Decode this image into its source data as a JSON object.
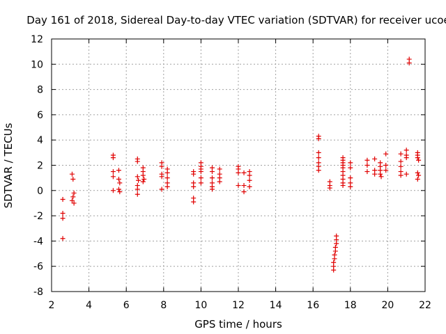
{
  "chart_data": {
    "type": "scatter",
    "title": "Day 161 of 2018, Sidereal Day-to-day VTEC variation (SDTVAR) for receiver ucoe",
    "xlabel": "GPS time / hours",
    "ylabel": "SDTVAR / TECUs",
    "xlim": [
      2,
      22
    ],
    "ylim": [
      -8,
      12
    ],
    "xticks": [
      2,
      4,
      6,
      8,
      10,
      12,
      14,
      16,
      18,
      20,
      22
    ],
    "yticks": [
      -8,
      -6,
      -4,
      -2,
      0,
      2,
      4,
      6,
      8,
      10,
      12
    ],
    "grid": true,
    "marker": "plus",
    "color": "#e00000",
    "series": [
      {
        "name": "SDTVAR",
        "points": [
          [
            2.6,
            -0.7
          ],
          [
            2.6,
            -1.8
          ],
          [
            2.6,
            -2.2
          ],
          [
            2.6,
            -3.8
          ],
          [
            3.1,
            1.3
          ],
          [
            3.15,
            0.9
          ],
          [
            3.2,
            -0.2
          ],
          [
            3.15,
            -0.5
          ],
          [
            3.1,
            -0.8
          ],
          [
            3.2,
            -1.0
          ],
          [
            5.3,
            2.8
          ],
          [
            5.3,
            2.6
          ],
          [
            5.3,
            1.5
          ],
          [
            5.3,
            1.1
          ],
          [
            5.3,
            0.0
          ],
          [
            5.6,
            1.6
          ],
          [
            5.6,
            0.9
          ],
          [
            5.65,
            0.6
          ],
          [
            5.6,
            0.1
          ],
          [
            5.65,
            -0.1
          ],
          [
            6.6,
            2.5
          ],
          [
            6.6,
            2.3
          ],
          [
            6.6,
            1.1
          ],
          [
            6.65,
            0.8
          ],
          [
            6.6,
            0.4
          ],
          [
            6.6,
            0.1
          ],
          [
            6.6,
            -0.3
          ],
          [
            6.9,
            1.8
          ],
          [
            6.9,
            1.5
          ],
          [
            6.9,
            1.2
          ],
          [
            6.95,
            0.9
          ],
          [
            6.9,
            0.7
          ],
          [
            7.9,
            2.2
          ],
          [
            7.9,
            1.9
          ],
          [
            7.9,
            1.3
          ],
          [
            7.9,
            1.1
          ],
          [
            7.9,
            0.1
          ],
          [
            8.2,
            1.7
          ],
          [
            8.2,
            1.4
          ],
          [
            8.2,
            1.0
          ],
          [
            8.2,
            0.6
          ],
          [
            8.2,
            0.3
          ],
          [
            9.6,
            1.5
          ],
          [
            9.6,
            1.3
          ],
          [
            9.6,
            0.6
          ],
          [
            9.6,
            0.3
          ],
          [
            9.6,
            -0.6
          ],
          [
            9.6,
            -0.9
          ],
          [
            10.0,
            2.2
          ],
          [
            10.0,
            1.9
          ],
          [
            10.0,
            1.7
          ],
          [
            10.0,
            1.5
          ],
          [
            10.0,
            1.0
          ],
          [
            10.0,
            0.6
          ],
          [
            10.6,
            1.8
          ],
          [
            10.6,
            1.5
          ],
          [
            10.6,
            1.0
          ],
          [
            10.6,
            0.6
          ],
          [
            10.6,
            0.3
          ],
          [
            10.6,
            0.1
          ],
          [
            11.0,
            1.7
          ],
          [
            11.0,
            1.3
          ],
          [
            11.0,
            1.0
          ],
          [
            11.0,
            0.7
          ],
          [
            12.0,
            1.9
          ],
          [
            12.0,
            1.7
          ],
          [
            12.0,
            1.4
          ],
          [
            12.0,
            0.4
          ],
          [
            12.3,
            1.4
          ],
          [
            12.3,
            0.4
          ],
          [
            12.3,
            -0.1
          ],
          [
            12.6,
            1.5
          ],
          [
            12.6,
            1.2
          ],
          [
            12.6,
            0.8
          ],
          [
            12.6,
            0.3
          ],
          [
            16.3,
            4.3
          ],
          [
            16.3,
            4.1
          ],
          [
            16.3,
            3.0
          ],
          [
            16.3,
            2.6
          ],
          [
            16.3,
            2.2
          ],
          [
            16.3,
            1.9
          ],
          [
            16.3,
            1.6
          ],
          [
            16.9,
            0.7
          ],
          [
            16.9,
            0.4
          ],
          [
            16.9,
            0.2
          ],
          [
            17.25,
            -3.6
          ],
          [
            17.25,
            -3.9
          ],
          [
            17.25,
            -4.2
          ],
          [
            17.2,
            -4.5
          ],
          [
            17.2,
            -4.8
          ],
          [
            17.15,
            -5.1
          ],
          [
            17.15,
            -5.4
          ],
          [
            17.1,
            -5.7
          ],
          [
            17.1,
            -6.0
          ],
          [
            17.1,
            -6.3
          ],
          [
            17.6,
            2.6
          ],
          [
            17.6,
            2.4
          ],
          [
            17.6,
            2.2
          ],
          [
            17.6,
            2.0
          ],
          [
            17.6,
            1.8
          ],
          [
            17.6,
            1.5
          ],
          [
            17.6,
            1.2
          ],
          [
            17.6,
            0.9
          ],
          [
            17.6,
            0.6
          ],
          [
            17.6,
            0.4
          ],
          [
            18.0,
            2.2
          ],
          [
            18.0,
            1.8
          ],
          [
            18.0,
            1.0
          ],
          [
            18.0,
            0.6
          ],
          [
            18.0,
            0.3
          ],
          [
            18.9,
            2.4
          ],
          [
            18.9,
            2.0
          ],
          [
            18.9,
            1.5
          ],
          [
            19.3,
            2.5
          ],
          [
            19.3,
            1.6
          ],
          [
            19.3,
            1.3
          ],
          [
            19.6,
            2.2
          ],
          [
            19.6,
            1.9
          ],
          [
            19.6,
            1.6
          ],
          [
            19.6,
            1.3
          ],
          [
            19.65,
            1.1
          ],
          [
            19.9,
            2.9
          ],
          [
            19.9,
            2.0
          ],
          [
            19.9,
            1.6
          ],
          [
            20.7,
            2.9
          ],
          [
            20.7,
            2.3
          ],
          [
            20.7,
            1.9
          ],
          [
            20.7,
            1.5
          ],
          [
            20.7,
            1.2
          ],
          [
            21.0,
            3.2
          ],
          [
            21.0,
            2.8
          ],
          [
            21.0,
            2.6
          ],
          [
            21.0,
            1.3
          ],
          [
            21.15,
            10.4
          ],
          [
            21.15,
            10.1
          ],
          [
            21.6,
            3.0
          ],
          [
            21.6,
            2.8
          ],
          [
            21.6,
            2.6
          ],
          [
            21.65,
            2.4
          ],
          [
            21.6,
            1.4
          ],
          [
            21.65,
            1.2
          ],
          [
            21.6,
            0.9
          ]
        ]
      }
    ]
  }
}
